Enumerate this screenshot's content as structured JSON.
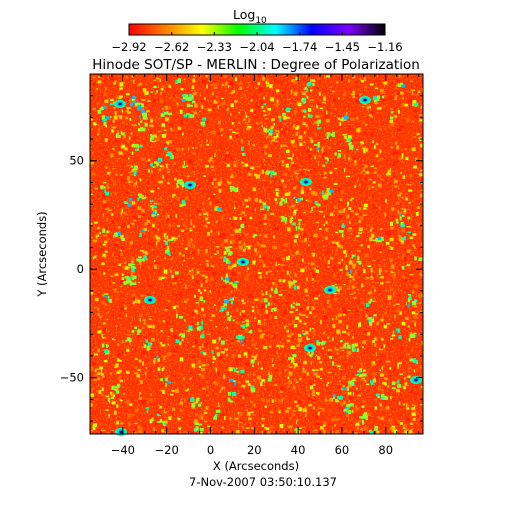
{
  "chart_data": {
    "type": "heatmap",
    "title": "Hinode SOT/SP - MERLIN : Degree of Polarization",
    "xlabel": "X (Arcseconds)",
    "ylabel": "Y (Arcseconds)",
    "xlim": [
      -55,
      97
    ],
    "ylim": [
      -76,
      90
    ],
    "x_ticks": [
      -40,
      -20,
      0,
      20,
      40,
      60,
      80
    ],
    "y_ticks": [
      -50,
      0,
      50
    ],
    "timestamp": "7-Nov-2007 03:50:10.137",
    "colorbar": {
      "label": "Log",
      "label_subscript": "10",
      "scale": "log10",
      "range": [
        -2.92,
        -1.16
      ],
      "ticks": [
        "-2.92",
        "-2.62",
        "-2.33",
        "-2.04",
        "-1.74",
        "-1.45",
        "-1.16"
      ],
      "colors": [
        "#ff0000",
        "#ff7f00",
        "#ffff00",
        "#00ff00",
        "#00ffff",
        "#0000ff",
        "#7f00ff",
        "#000000"
      ]
    },
    "colors": {
      "background": "#ff3000",
      "speckle": [
        "#ff1e00",
        "#ff6a00",
        "#ffa000",
        "#ffd400",
        "#d6ff00"
      ],
      "patch": [
        "#88ff30",
        "#00ffb0",
        "#00c0ff",
        "#0040ff",
        "#101060"
      ]
    },
    "grid": false,
    "legend": "colorbar-top"
  }
}
